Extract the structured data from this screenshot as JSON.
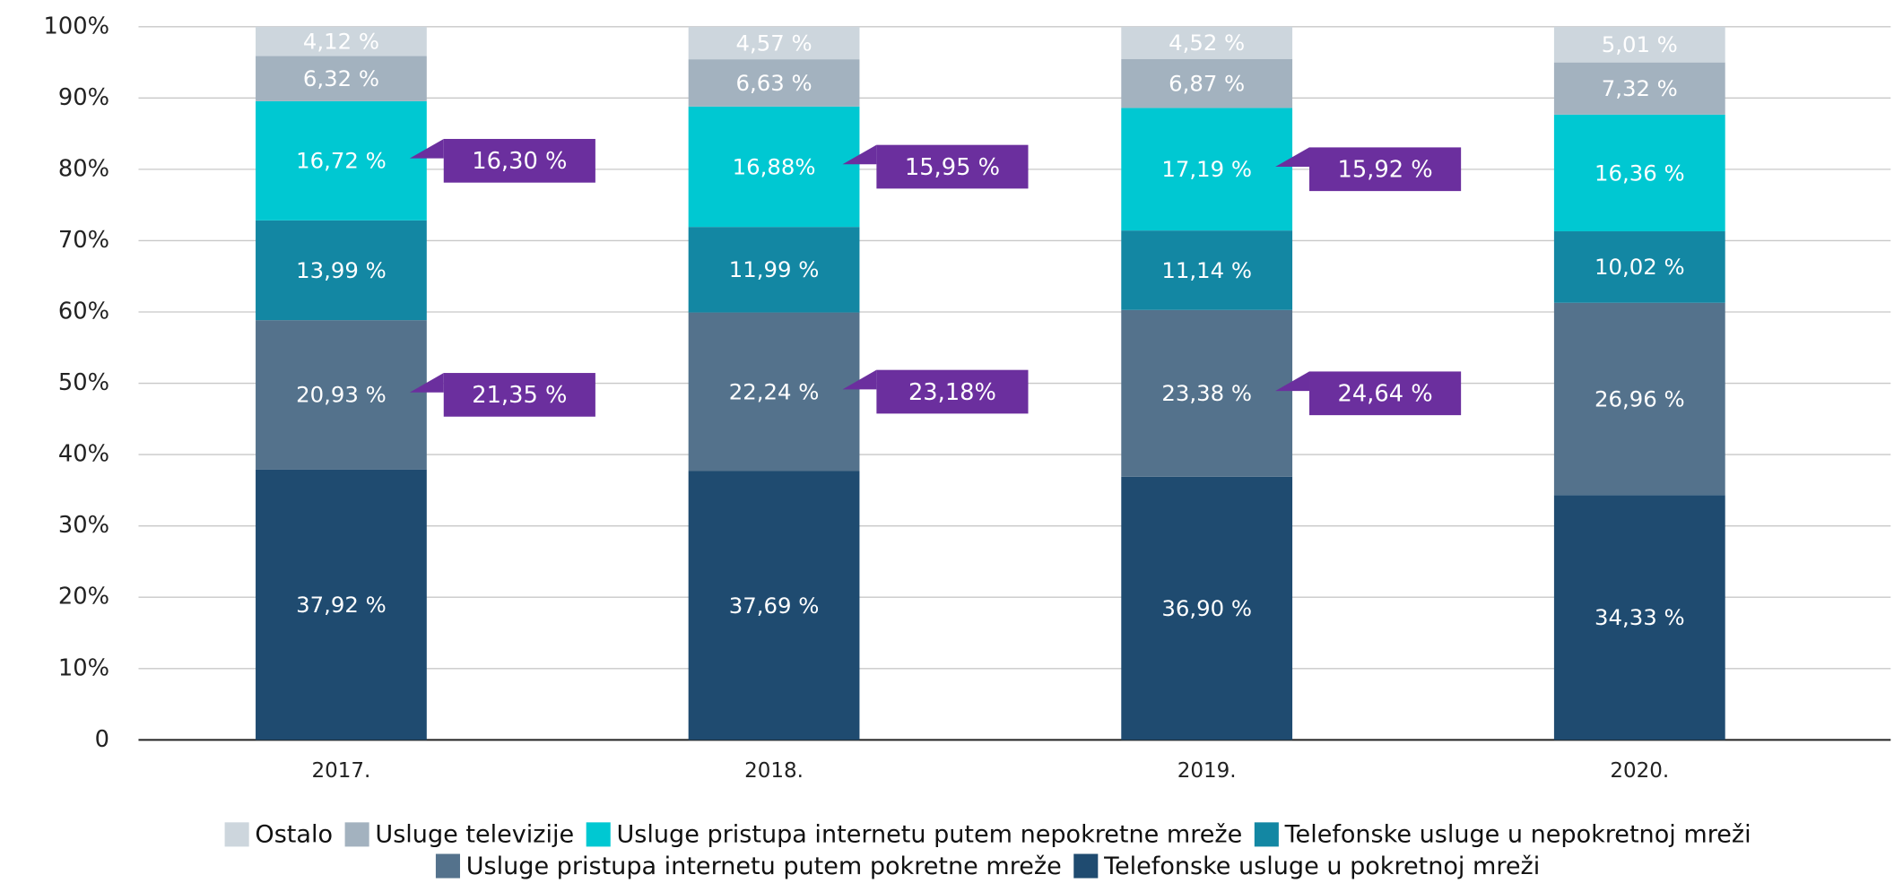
{
  "chart_data": {
    "type": "stacked_bar",
    "categories": [
      "2017.",
      "2018.",
      "2019.",
      "2020."
    ],
    "series": [
      {
        "name": "Telefonske usluge u pokretnoj mreži",
        "color": "#1f4b70",
        "values": [
          37.92,
          37.69,
          36.9,
          34.33
        ],
        "value_labels": [
          "37,92 %",
          "37,69 %",
          "36,90 %",
          "34,33 %"
        ]
      },
      {
        "name": "Usluge pristupa internetu putem pokretne mreže",
        "color": "#54728c",
        "values": [
          20.93,
          22.24,
          23.38,
          26.96
        ],
        "value_labels": [
          "20,93 %",
          "22,24 %",
          "23,38 %",
          "26,96 %"
        ]
      },
      {
        "name": "Telefonske usluge u nepokretnoj mreži",
        "color": "#1387a3",
        "values": [
          13.99,
          11.99,
          11.14,
          10.02
        ],
        "value_labels": [
          "13,99 %",
          "11,99 %",
          "11,14 %",
          "10,02 %"
        ]
      },
      {
        "name": "Usluge pristupa internetu putem nepokretne mreže",
        "color": "#00c8d2",
        "values": [
          16.72,
          16.88,
          17.19,
          16.36
        ],
        "value_labels": [
          "16,72 %",
          "16,88%",
          "17,19 %",
          "16,36 %"
        ]
      },
      {
        "name": "Usluge televizije",
        "color": "#a3b2bf",
        "values": [
          6.32,
          6.63,
          6.87,
          7.32
        ],
        "value_labels": [
          "6,32 %",
          "6,63 %",
          "6,87 %",
          "7,32 %"
        ]
      },
      {
        "name": "Ostalo",
        "color": "#cdd6dd",
        "values": [
          4.12,
          4.57,
          4.52,
          5.01
        ],
        "value_labels": [
          "4,12 %",
          "4,57 %",
          "4,52 %",
          "5,01 %"
        ]
      }
    ],
    "ylim": [
      0,
      100
    ],
    "yticks": [
      0,
      {
        "value": 10,
        "label": "10%"
      },
      {
        "value": 20,
        "label": "20%"
      },
      {
        "value": 30,
        "label": "30%"
      },
      {
        "value": 40,
        "label": "40%"
      },
      {
        "value": 50,
        "label": "50%"
      },
      {
        "value": 60,
        "label": "60%"
      },
      {
        "value": 70,
        "label": "70%"
      },
      {
        "value": 80,
        "label": "80%"
      },
      {
        "value": 90,
        "label": "90%"
      },
      {
        "value": 100,
        "label": "100%"
      }
    ],
    "grid": true,
    "legend": "bottom",
    "annotation_color": "#6b2f9e",
    "annotations": [
      {
        "x": "2017.",
        "series": "Usluge pristupa internetu putem nepokretne mreže",
        "text": "16,30 %"
      },
      {
        "x": "2017.",
        "series": "Usluge pristupa internetu putem pokretne mreže",
        "text": "21,35 %"
      },
      {
        "x": "2018.",
        "series": "Usluge pristupa internetu putem nepokretne mreže",
        "text": "15,95  %"
      },
      {
        "x": "2018.",
        "series": "Usluge pristupa internetu putem pokretne mreže",
        "text": "23,18%"
      },
      {
        "x": "2019.",
        "series": "Usluge pristupa internetu putem nepokretne mreže",
        "text": "15,92 %"
      },
      {
        "x": "2019.",
        "series": "Usluge pristupa internetu putem pokretne mreže",
        "text": "24,64 %"
      }
    ]
  }
}
